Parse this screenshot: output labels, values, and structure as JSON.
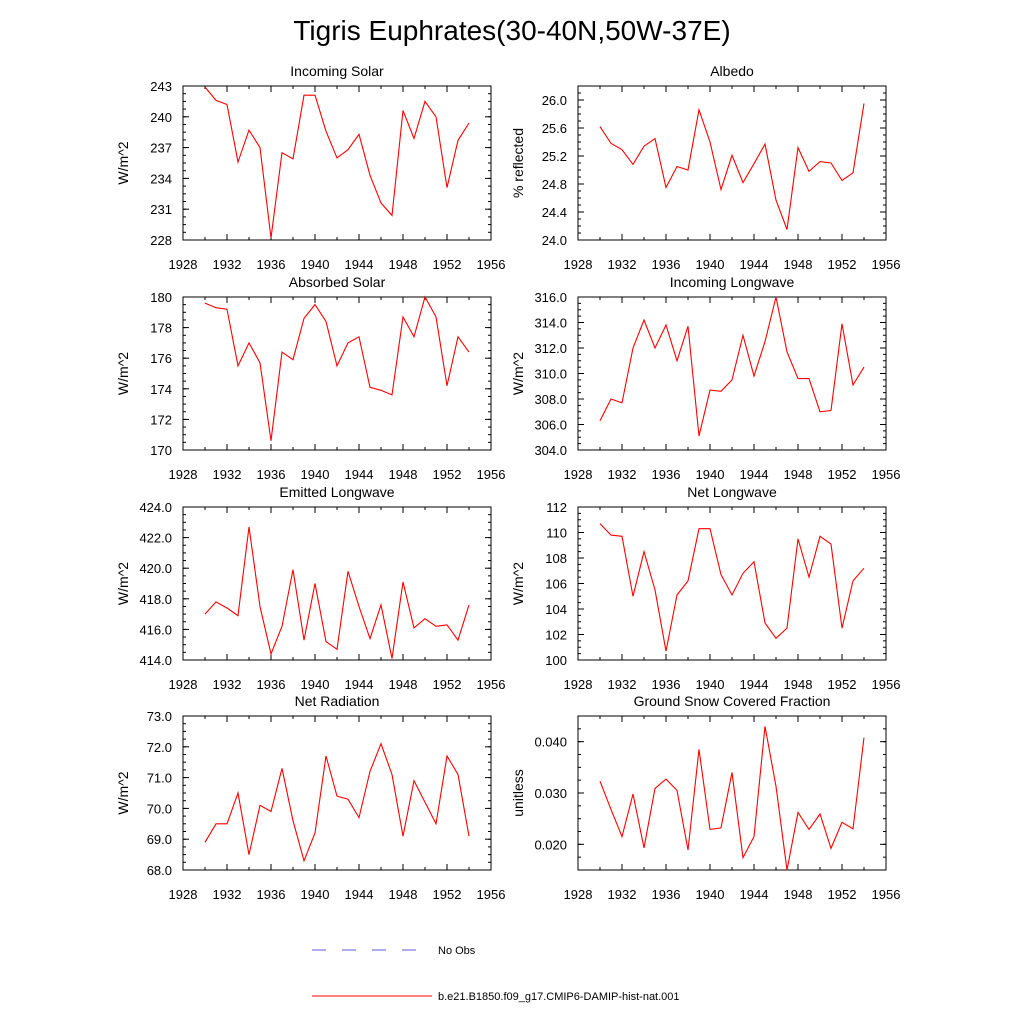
{
  "figure": {
    "title": "Tigris Euphrates(30-40N,50W-37E)",
    "legend": [
      {
        "label": "No Obs",
        "color": "#5b5bd6",
        "style": "dashed"
      },
      {
        "label": "b.e21.B1850.f09_g17.CMIP6-DAMIP-hist-nat.001",
        "color": "#ff0000",
        "style": "solid"
      }
    ]
  },
  "chart_data": [
    {
      "type": "line",
      "title": "Incoming Solar",
      "xlabel": "",
      "ylabel": "W/m^2",
      "xlim": [
        1928,
        1956
      ],
      "ylim": [
        228,
        243
      ],
      "xticks": [
        1928,
        1932,
        1936,
        1940,
        1944,
        1948,
        1952,
        1956
      ],
      "xtick_labels": [
        "1928",
        "1932",
        "1936",
        "1940",
        "1944",
        "1948",
        "1952",
        "1956"
      ],
      "yticks": [
        228,
        231,
        234,
        237,
        240,
        243
      ],
      "ytick_labels": [
        "228",
        "231",
        "234",
        "237",
        "240",
        "243"
      ],
      "series": [
        {
          "color": "#ff0000",
          "x": [
            1930,
            1931,
            1932,
            1933,
            1934,
            1935,
            1936,
            1937,
            1938,
            1939,
            1940,
            1941,
            1942,
            1943,
            1944,
            1945,
            1946,
            1947,
            1948,
            1949,
            1950,
            1951,
            1952,
            1953,
            1954
          ],
          "values": [
            242.9,
            241.6,
            241.2,
            235.6,
            238.7,
            237.0,
            228.2,
            236.5,
            235.9,
            242.1,
            242.1,
            238.6,
            236.0,
            236.8,
            238.3,
            234.3,
            231.6,
            230.4,
            240.6,
            237.9,
            241.5,
            240.0,
            233.1,
            237.7,
            239.4
          ]
        }
      ]
    },
    {
      "type": "line",
      "title": "Albedo",
      "xlabel": "",
      "ylabel": "% reflected",
      "xlim": [
        1928,
        1956
      ],
      "ylim": [
        24.0,
        26.2
      ],
      "xticks": [
        1928,
        1932,
        1936,
        1940,
        1944,
        1948,
        1952,
        1956
      ],
      "xtick_labels": [
        "1928",
        "1932",
        "1936",
        "1940",
        "1944",
        "1948",
        "1952",
        "1956"
      ],
      "yticks": [
        24.0,
        24.4,
        24.8,
        25.2,
        25.6,
        26.0
      ],
      "ytick_labels": [
        "24.0",
        "24.4",
        "24.8",
        "25.2",
        "25.6",
        "26.0"
      ],
      "series": [
        {
          "color": "#ff0000",
          "x": [
            1930,
            1931,
            1932,
            1933,
            1934,
            1935,
            1936,
            1937,
            1938,
            1939,
            1940,
            1941,
            1942,
            1943,
            1944,
            1945,
            1946,
            1947,
            1948,
            1949,
            1950,
            1951,
            1952,
            1953,
            1954
          ],
          "values": [
            25.62,
            25.38,
            25.29,
            25.08,
            25.34,
            25.45,
            24.75,
            25.05,
            25.0,
            25.86,
            25.4,
            24.72,
            25.21,
            24.82,
            25.09,
            25.37,
            24.57,
            24.15,
            25.32,
            24.98,
            25.12,
            25.1,
            24.85,
            24.96,
            25.95
          ]
        }
      ]
    },
    {
      "type": "line",
      "title": "Absorbed Solar",
      "xlabel": "",
      "ylabel": "W/m^2",
      "xlim": [
        1928,
        1956
      ],
      "ylim": [
        170,
        180
      ],
      "xticks": [
        1928,
        1932,
        1936,
        1940,
        1944,
        1948,
        1952,
        1956
      ],
      "xtick_labels": [
        "1928",
        "1932",
        "1936",
        "1940",
        "1944",
        "1948",
        "1952",
        "1956"
      ],
      "yticks": [
        170,
        172,
        174,
        176,
        178,
        180
      ],
      "ytick_labels": [
        "170",
        "172",
        "174",
        "176",
        "178",
        "180"
      ],
      "series": [
        {
          "color": "#ff0000",
          "x": [
            1930,
            1931,
            1932,
            1933,
            1934,
            1935,
            1936,
            1937,
            1938,
            1939,
            1940,
            1941,
            1942,
            1943,
            1944,
            1945,
            1946,
            1947,
            1948,
            1949,
            1950,
            1951,
            1952,
            1953,
            1954
          ],
          "values": [
            179.6,
            179.3,
            179.2,
            175.5,
            177.0,
            175.7,
            170.6,
            176.4,
            175.9,
            178.6,
            179.5,
            178.4,
            175.5,
            177.0,
            177.4,
            174.1,
            173.9,
            173.6,
            178.7,
            177.4,
            180.0,
            178.7,
            174.2,
            177.4,
            176.4
          ]
        }
      ]
    },
    {
      "type": "line",
      "title": "Incoming Longwave",
      "xlabel": "",
      "ylabel": "W/m^2",
      "xlim": [
        1928,
        1956
      ],
      "ylim": [
        304.0,
        316.0
      ],
      "xticks": [
        1928,
        1932,
        1936,
        1940,
        1944,
        1948,
        1952,
        1956
      ],
      "xtick_labels": [
        "1928",
        "1932",
        "1936",
        "1940",
        "1944",
        "1948",
        "1952",
        "1956"
      ],
      "yticks": [
        304.0,
        306.0,
        308.0,
        310.0,
        312.0,
        314.0,
        316.0
      ],
      "ytick_labels": [
        "304.0",
        "306.0",
        "308.0",
        "310.0",
        "312.0",
        "314.0",
        "316.0"
      ],
      "series": [
        {
          "color": "#ff0000",
          "x": [
            1930,
            1931,
            1932,
            1933,
            1934,
            1935,
            1936,
            1937,
            1938,
            1939,
            1940,
            1941,
            1942,
            1943,
            1944,
            1945,
            1946,
            1947,
            1948,
            1949,
            1950,
            1951,
            1952,
            1953,
            1954
          ],
          "values": [
            306.3,
            308.0,
            307.7,
            312.0,
            314.2,
            312.0,
            313.8,
            311.0,
            313.7,
            305.1,
            308.7,
            308.6,
            309.5,
            313.0,
            309.8,
            312.5,
            316.0,
            311.7,
            309.6,
            309.6,
            307.0,
            307.1,
            313.9,
            309.1,
            310.5
          ]
        }
      ]
    },
    {
      "type": "line",
      "title": "Emitted Longwave",
      "xlabel": "",
      "ylabel": "W/m^2",
      "xlim": [
        1928,
        1956
      ],
      "ylim": [
        414.0,
        424.0
      ],
      "xticks": [
        1928,
        1932,
        1936,
        1940,
        1944,
        1948,
        1952,
        1956
      ],
      "xtick_labels": [
        "1928",
        "1932",
        "1936",
        "1940",
        "1944",
        "1948",
        "1952",
        "1956"
      ],
      "yticks": [
        414.0,
        416.0,
        418.0,
        420.0,
        422.0,
        424.0
      ],
      "ytick_labels": [
        "414.0",
        "416.0",
        "418.0",
        "420.0",
        "422.0",
        "424.0"
      ],
      "series": [
        {
          "color": "#ff0000",
          "x": [
            1930,
            1931,
            1932,
            1933,
            1934,
            1935,
            1936,
            1937,
            1938,
            1939,
            1940,
            1941,
            1942,
            1943,
            1944,
            1945,
            1946,
            1947,
            1948,
            1949,
            1950,
            1951,
            1952,
            1953,
            1954
          ],
          "values": [
            417.0,
            417.8,
            417.4,
            416.9,
            422.7,
            417.5,
            414.4,
            416.2,
            419.9,
            415.3,
            419.0,
            415.2,
            414.7,
            419.8,
            417.5,
            415.4,
            417.6,
            414.1,
            419.1,
            416.1,
            416.7,
            416.2,
            416.3,
            415.3,
            417.6
          ]
        }
      ]
    },
    {
      "type": "line",
      "title": "Net Longwave",
      "xlabel": "",
      "ylabel": "W/m^2",
      "xlim": [
        1928,
        1956
      ],
      "ylim": [
        100,
        112
      ],
      "xticks": [
        1928,
        1932,
        1936,
        1940,
        1944,
        1948,
        1952,
        1956
      ],
      "xtick_labels": [
        "1928",
        "1932",
        "1936",
        "1940",
        "1944",
        "1948",
        "1952",
        "1956"
      ],
      "yticks": [
        100,
        102,
        104,
        106,
        108,
        110,
        112
      ],
      "ytick_labels": [
        "100",
        "102",
        "104",
        "106",
        "108",
        "110",
        "112"
      ],
      "series": [
        {
          "color": "#ff0000",
          "x": [
            1930,
            1931,
            1932,
            1933,
            1934,
            1935,
            1936,
            1937,
            1938,
            1939,
            1940,
            1941,
            1942,
            1943,
            1944,
            1945,
            1946,
            1947,
            1948,
            1949,
            1950,
            1951,
            1952,
            1953,
            1954
          ],
          "values": [
            110.7,
            109.8,
            109.7,
            105.0,
            108.5,
            105.5,
            100.7,
            105.1,
            106.2,
            110.3,
            110.3,
            106.7,
            105.1,
            106.8,
            107.7,
            102.9,
            101.7,
            102.5,
            109.5,
            106.5,
            109.7,
            109.1,
            102.5,
            106.2,
            107.2
          ]
        }
      ]
    },
    {
      "type": "line",
      "title": "Net Radiation",
      "xlabel": "",
      "ylabel": "W/m^2",
      "xlim": [
        1928,
        1956
      ],
      "ylim": [
        68.0,
        73.0
      ],
      "xticks": [
        1928,
        1932,
        1936,
        1940,
        1944,
        1948,
        1952,
        1956
      ],
      "xtick_labels": [
        "1928",
        "1932",
        "1936",
        "1940",
        "1944",
        "1948",
        "1952",
        "1956"
      ],
      "yticks": [
        68.0,
        69.0,
        70.0,
        71.0,
        72.0,
        73.0
      ],
      "ytick_labels": [
        "68.0",
        "69.0",
        "70.0",
        "71.0",
        "72.0",
        "73.0"
      ],
      "series": [
        {
          "color": "#ff0000",
          "x": [
            1930,
            1931,
            1932,
            1933,
            1934,
            1935,
            1936,
            1937,
            1938,
            1939,
            1940,
            1941,
            1942,
            1943,
            1944,
            1945,
            1946,
            1947,
            1948,
            1949,
            1950,
            1951,
            1952,
            1953,
            1954
          ],
          "values": [
            68.9,
            69.5,
            69.5,
            70.5,
            68.5,
            70.1,
            69.9,
            71.3,
            69.6,
            68.3,
            69.2,
            71.7,
            70.4,
            70.3,
            69.7,
            71.2,
            72.1,
            71.1,
            69.1,
            70.9,
            70.2,
            69.5,
            71.7,
            71.1,
            69.1
          ]
        }
      ]
    },
    {
      "type": "line",
      "title": "Ground Snow Covered Fraction",
      "xlabel": "",
      "ylabel": "unitless",
      "xlim": [
        1928,
        1956
      ],
      "ylim": [
        0.015,
        0.045
      ],
      "xticks": [
        1928,
        1932,
        1936,
        1940,
        1944,
        1948,
        1952,
        1956
      ],
      "xtick_labels": [
        "1928",
        "1932",
        "1936",
        "1940",
        "1944",
        "1948",
        "1952",
        "1956"
      ],
      "yticks": [
        0.02,
        0.03,
        0.04
      ],
      "ytick_labels": [
        "0.020",
        "0.030",
        "0.040"
      ],
      "series": [
        {
          "color": "#ff0000",
          "x": [
            1930,
            1931,
            1932,
            1933,
            1934,
            1935,
            1936,
            1937,
            1938,
            1939,
            1940,
            1941,
            1942,
            1943,
            1944,
            1945,
            1946,
            1947,
            1948,
            1949,
            1950,
            1951,
            1952,
            1953,
            1954
          ],
          "values": [
            0.0323,
            0.0268,
            0.0215,
            0.0298,
            0.0193,
            0.0309,
            0.0327,
            0.0305,
            0.0189,
            0.0385,
            0.0229,
            0.0232,
            0.034,
            0.0174,
            0.0215,
            0.043,
            0.0313,
            0.015,
            0.0262,
            0.0229,
            0.0259,
            0.0192,
            0.0243,
            0.023,
            0.0408
          ]
        }
      ]
    }
  ]
}
